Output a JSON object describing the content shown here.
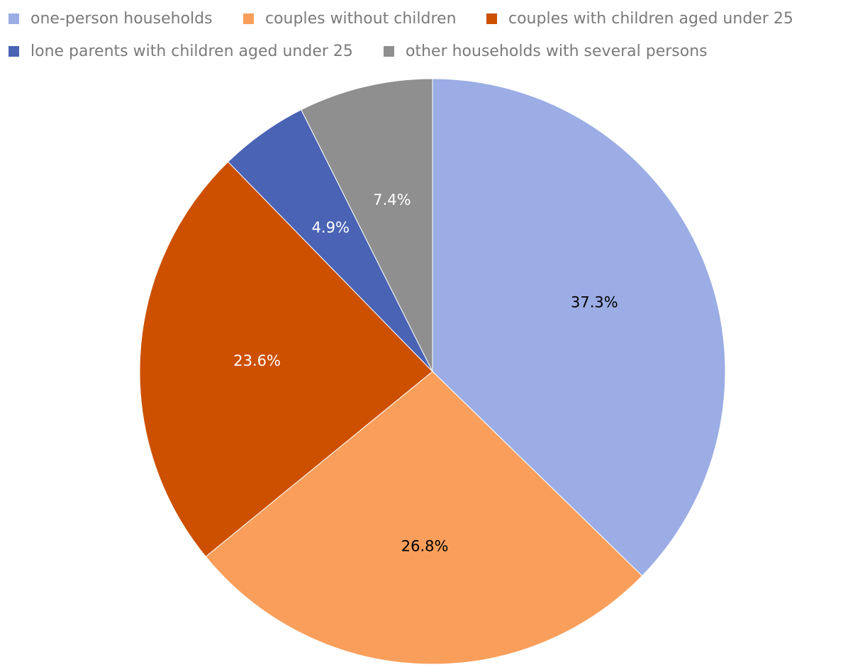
{
  "chart_data": {
    "type": "pie",
    "title": "",
    "categories": [
      "one-person households",
      "couples without children",
      "couples with children aged under 25",
      "lone parents with children aged under 25",
      "other households with several persons"
    ],
    "values": [
      37.3,
      26.8,
      23.6,
      4.9,
      7.4
    ],
    "value_labels": [
      "37.3%",
      "26.8%",
      "23.6%",
      "4.9%",
      "7.4%"
    ],
    "colors": [
      "#9BADE4",
      "#F99F5B",
      "#CC5000",
      "#4A63B4",
      "#8F8F8F"
    ],
    "label_colors": [
      "#000000",
      "#000000",
      "#ffffff",
      "#ffffff",
      "#ffffff"
    ],
    "legend_position": "top"
  }
}
